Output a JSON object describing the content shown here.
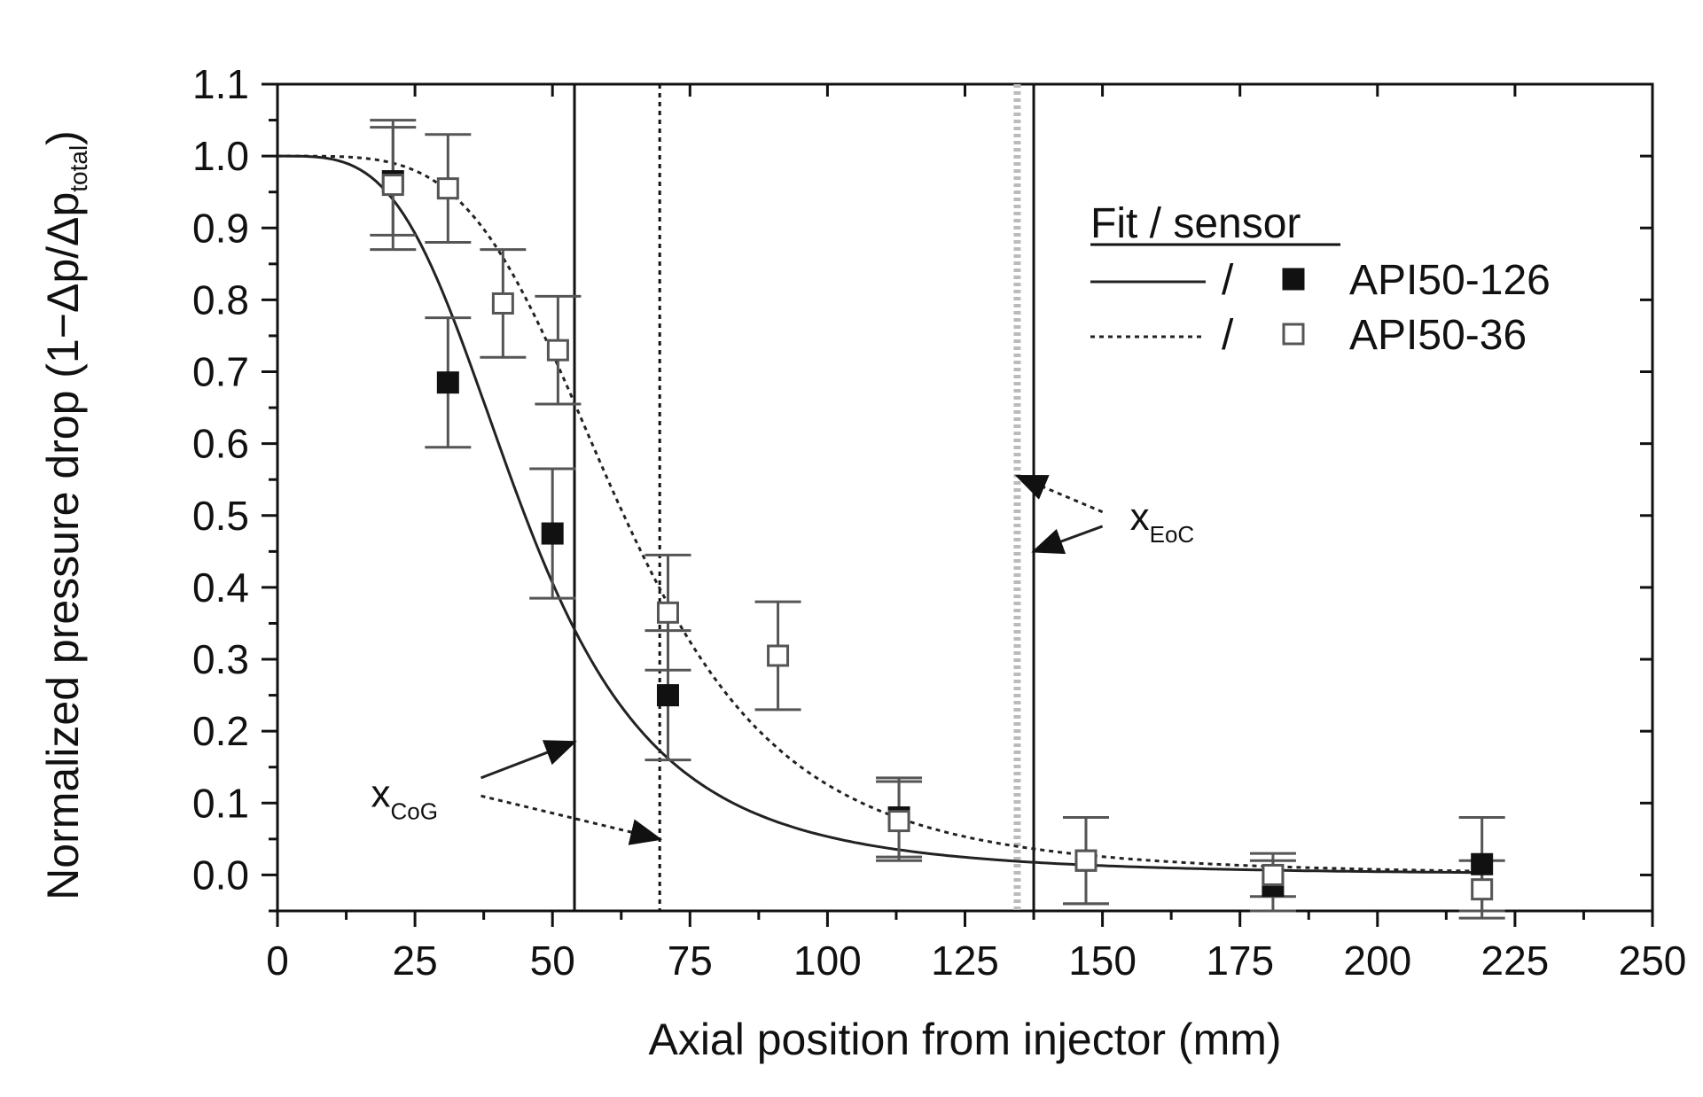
{
  "chart_data": {
    "type": "scatter",
    "title": "",
    "xlabel": "Axial position from injector (mm)",
    "ylabel_main": "Normalized pressure drop (1−Δp/Δp",
    "ylabel_sub": "total",
    "ylabel_close": ")",
    "xlim": [
      0,
      250
    ],
    "ylim": [
      -0.05,
      1.1
    ],
    "x_ticks": [
      0,
      25,
      50,
      75,
      100,
      125,
      150,
      175,
      200,
      225,
      250
    ],
    "y_ticks": [
      0.0,
      0.1,
      0.2,
      0.3,
      0.4,
      0.5,
      0.6,
      0.7,
      0.8,
      0.9,
      1.0,
      1.1
    ],
    "y_tick_labels": [
      "0.0",
      "0.1",
      "0.2",
      "0.3",
      "0.4",
      "0.5",
      "0.6",
      "0.7",
      "0.8",
      "0.9",
      "1.0",
      "1.1"
    ],
    "grid": false,
    "legend": {
      "title": "Fit / sensor",
      "placement": "top-right",
      "separator": "/"
    },
    "series": [
      {
        "name": "API50-126",
        "marker": "filled-square",
        "fit_line": "solid",
        "points": [
          {
            "x": 21,
            "y": 0.965,
            "err": 0.075
          },
          {
            "x": 31,
            "y": 0.685,
            "err": 0.09
          },
          {
            "x": 50,
            "y": 0.475,
            "err": 0.09
          },
          {
            "x": 71,
            "y": 0.25,
            "err": 0.09
          },
          {
            "x": 113,
            "y": 0.08,
            "err": 0.055
          },
          {
            "x": 147,
            "y": 0.02,
            "err": 0.06
          },
          {
            "x": 181,
            "y": -0.015,
            "err": 0.035
          },
          {
            "x": 219,
            "y": 0.015,
            "err": 0.065
          }
        ],
        "fit": {
          "model": "1/(1+(x/x0)^n)",
          "x0": 45,
          "n": 3.6
        }
      },
      {
        "name": "API50-36",
        "marker": "open-square",
        "fit_line": "dotted",
        "points": [
          {
            "x": 21,
            "y": 0.96,
            "err": 0.09
          },
          {
            "x": 31,
            "y": 0.955,
            "err": 0.075
          },
          {
            "x": 41,
            "y": 0.795,
            "err": 0.075
          },
          {
            "x": 51,
            "y": 0.73,
            "err": 0.075
          },
          {
            "x": 71,
            "y": 0.365,
            "err": 0.08
          },
          {
            "x": 91,
            "y": 0.305,
            "err": 0.075
          },
          {
            "x": 113,
            "y": 0.075,
            "err": 0.055
          },
          {
            "x": 147,
            "y": 0.02,
            "err": 0.06
          },
          {
            "x": 181,
            "y": 0.0,
            "err": 0.03
          },
          {
            "x": 219,
            "y": -0.02,
            "err": 0.04
          }
        ],
        "fit": {
          "model": "1/(1+(x/x0)^n)",
          "x0": 63,
          "n": 4.2
        }
      }
    ],
    "vertical_lines": [
      {
        "x": 54,
        "style": "solid",
        "color": "#111111"
      },
      {
        "x": 69.5,
        "style": "dotted",
        "color": "#111111"
      },
      {
        "x": 134.5,
        "style": "thick-dotted",
        "color": "#bbbbbb"
      },
      {
        "x": 137.5,
        "style": "solid",
        "color": "#111111"
      }
    ],
    "annotations": [
      {
        "main": "x",
        "sub": "CoG",
        "x": 17,
        "y": 0.095
      },
      {
        "main": "x",
        "sub": "EoC",
        "x": 155,
        "y": 0.48
      }
    ],
    "arrows": [
      {
        "from": [
          37,
          0.135
        ],
        "to": [
          54,
          0.185
        ],
        "style": "solid"
      },
      {
        "from": [
          37,
          0.11
        ],
        "to": [
          69.5,
          0.05
        ],
        "style": "dotted"
      },
      {
        "from": [
          150,
          0.505
        ],
        "to": [
          134.5,
          0.555
        ],
        "style": "dotted"
      },
      {
        "from": [
          150,
          0.485
        ],
        "to": [
          137.5,
          0.45
        ],
        "style": "solid"
      }
    ],
    "colors": {
      "axes": "#111111",
      "filled_marker": "#111111",
      "open_marker": "#ffffff",
      "error_bar": "#555555"
    }
  }
}
